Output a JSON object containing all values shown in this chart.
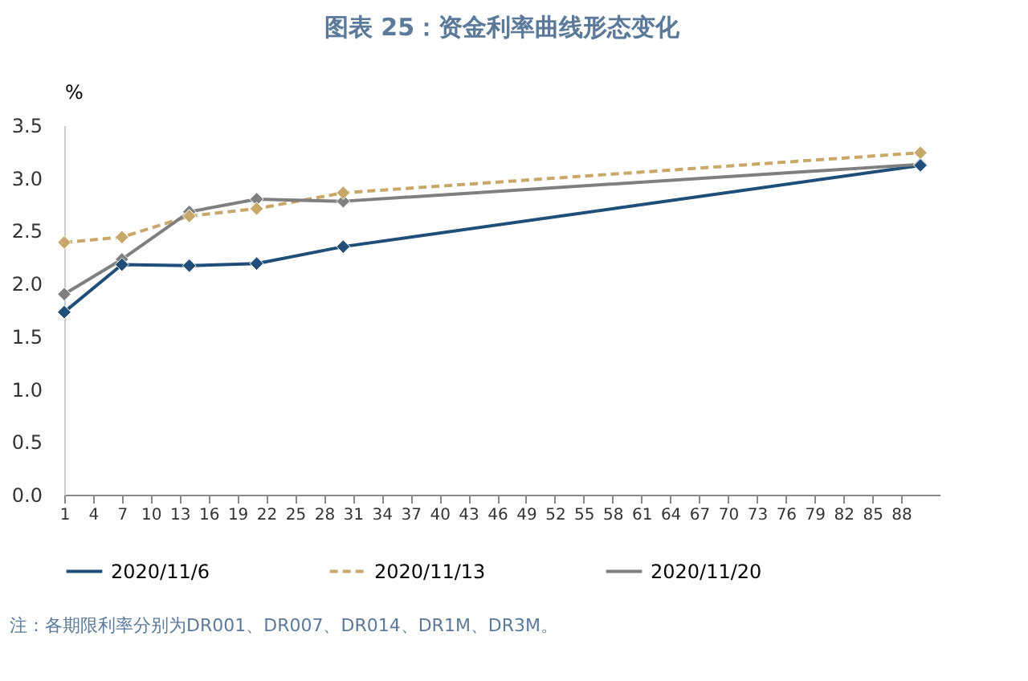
{
  "chart_data": {
    "type": "line",
    "title": "图表 25：资金利率曲线形态变化",
    "ylabel": "%",
    "x": [
      1,
      7,
      14,
      21,
      30,
      90
    ],
    "series": [
      {
        "name": "2020/11/6",
        "color": "#1f4e79",
        "line_style": "solid",
        "values": [
          1.73,
          2.18,
          2.17,
          2.19,
          2.35,
          3.12
        ]
      },
      {
        "name": "2020/11/13",
        "color": "#c8a76a",
        "line_style": "dashed",
        "values": [
          2.39,
          2.44,
          2.64,
          2.71,
          2.86,
          3.24
        ]
      },
      {
        "name": "2020/11/20",
        "color": "#7f7f7f",
        "line_style": "solid",
        "values": [
          1.9,
          2.23,
          2.68,
          2.8,
          2.78,
          3.13
        ]
      }
    ],
    "xlim": [
      1,
      92
    ],
    "xticks": [
      1,
      4,
      7,
      10,
      13,
      16,
      19,
      22,
      25,
      28,
      31,
      34,
      37,
      40,
      43,
      46,
      49,
      52,
      55,
      58,
      61,
      64,
      67,
      70,
      73,
      76,
      79,
      82,
      85,
      88
    ],
    "ylim": [
      0,
      3.5
    ],
    "yticks": [
      {
        "value": 0,
        "label": "0.0"
      },
      {
        "value": 0.5,
        "label": "0.5"
      },
      {
        "value": 1,
        "label": "1.0"
      },
      {
        "value": 1.5,
        "label": "1.5"
      },
      {
        "value": 2,
        "label": "2.0"
      },
      {
        "value": 2.5,
        "label": "2.5"
      },
      {
        "value": 3,
        "label": "3.0"
      },
      {
        "value": 3.5,
        "label": "3.5"
      }
    ],
    "marker": "diamond",
    "legend": "bottom",
    "grid": false,
    "annotations": [
      "注：各期限利率分别为DR001、DR007、DR014、DR1M、DR3M。"
    ]
  }
}
